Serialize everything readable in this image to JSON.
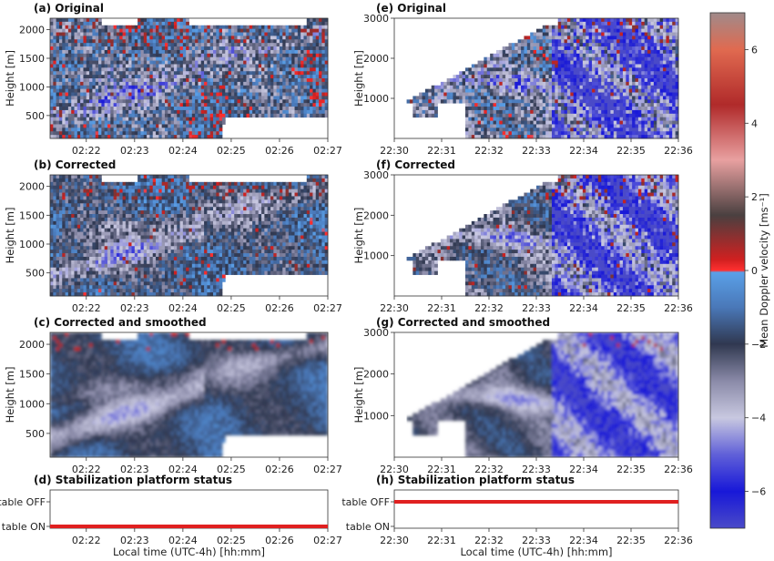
{
  "chart_data": [
    {
      "id": "a",
      "type": "heatmap",
      "title": "(a) Original",
      "ylabel": "Height [m]",
      "xlabel": "",
      "xticks": [
        "02:22",
        "02:23",
        "02:24",
        "02:25",
        "02:26",
        "02:27"
      ],
      "yticks": [
        "500",
        "1000",
        "1500",
        "2000"
      ],
      "xlim": [
        "02:21:15",
        "02:27:00"
      ],
      "ylim": [
        100,
        2200
      ]
    },
    {
      "id": "b",
      "type": "heatmap",
      "title": "(b) Corrected",
      "ylabel": "Height [m]",
      "xlabel": "",
      "xticks": [
        "02:22",
        "02:23",
        "02:24",
        "02:25",
        "02:26",
        "02:27"
      ],
      "yticks": [
        "500",
        "1000",
        "1500",
        "2000"
      ],
      "xlim": [
        "02:21:15",
        "02:27:00"
      ],
      "ylim": [
        100,
        2200
      ]
    },
    {
      "id": "c",
      "type": "heatmap",
      "title": "(c) Corrected and smoothed",
      "ylabel": "Height [m]",
      "xlabel": "",
      "xticks": [
        "02:22",
        "02:23",
        "02:24",
        "02:25",
        "02:26",
        "02:27"
      ],
      "yticks": [
        "500",
        "1000",
        "1500",
        "2000"
      ],
      "xlim": [
        "02:21:15",
        "02:27:00"
      ],
      "ylim": [
        100,
        2200
      ]
    },
    {
      "id": "d",
      "type": "line",
      "title": "(d) Stabilization platform status",
      "xlabel": "Local time (UTC-4h) [hh:mm]",
      "ylabel": "",
      "xticks": [
        "02:22",
        "02:23",
        "02:24",
        "02:25",
        "02:26",
        "02:27"
      ],
      "yticks": [
        "table OFF",
        "table ON"
      ],
      "series": [
        {
          "x": [
            "02:21:15",
            "02:27:00"
          ],
          "y": [
            "table ON",
            "table ON"
          ],
          "color": "#e02020"
        }
      ]
    },
    {
      "id": "e",
      "type": "heatmap",
      "title": "(e) Original",
      "ylabel": "Height [m]",
      "xlabel": "",
      "xticks": [
        "22:30",
        "22:31",
        "22:32",
        "22:33",
        "22:34",
        "22:35",
        "22:36"
      ],
      "yticks": [
        "1000",
        "2000",
        "3000"
      ],
      "xlim": [
        "22:30",
        "22:36"
      ],
      "ylim": [
        0,
        3000
      ]
    },
    {
      "id": "f",
      "type": "heatmap",
      "title": "(f) Corrected",
      "ylabel": "Height [m]",
      "xlabel": "",
      "xticks": [
        "22:30",
        "22:31",
        "22:32",
        "22:33",
        "22:34",
        "22:35",
        "22:36"
      ],
      "yticks": [
        "1000",
        "2000",
        "3000"
      ],
      "xlim": [
        "22:30",
        "22:36"
      ],
      "ylim": [
        0,
        3000
      ]
    },
    {
      "id": "g",
      "type": "heatmap",
      "title": "(g) Corrected and smoothed",
      "ylabel": "Height [m]",
      "xlabel": "",
      "xticks": [
        "22:30",
        "22:31",
        "22:32",
        "22:33",
        "22:34",
        "22:35",
        "22:36"
      ],
      "yticks": [
        "1000",
        "2000",
        "3000"
      ],
      "xlim": [
        "22:30",
        "22:36"
      ],
      "ylim": [
        0,
        3000
      ]
    },
    {
      "id": "h",
      "type": "line",
      "title": "(h) Stabilization platform status",
      "xlabel": "Local time (UTC-4h) [hh:mm]",
      "ylabel": "",
      "xticks": [
        "22:30",
        "22:31",
        "22:32",
        "22:33",
        "22:34",
        "22:35",
        "22:36"
      ],
      "yticks": [
        "table OFF",
        "table ON"
      ],
      "series": [
        {
          "x": [
            "22:30",
            "22:36"
          ],
          "y": [
            "table OFF",
            "table OFF"
          ],
          "color": "#e02020"
        }
      ]
    }
  ],
  "colorbar": {
    "label": "Mean Doppler velocity [ms⁻¹]",
    "range": [
      -7,
      7
    ],
    "ticks": [
      "6",
      "4",
      "2",
      "0",
      "−2",
      "−4",
      "−6"
    ],
    "stops": [
      {
        "v": 7,
        "color": "#a08a8a"
      },
      {
        "v": 6,
        "color": "#e06a50"
      },
      {
        "v": 4.5,
        "color": "#b02a2a"
      },
      {
        "v": 3,
        "color": "#e8a0a0"
      },
      {
        "v": 1.5,
        "color": "#4a4040"
      },
      {
        "v": 0.3,
        "color": "#d02020"
      },
      {
        "v": 0,
        "color": "#ff3030"
      },
      {
        "v": -0.05,
        "color": "#5aa0e8"
      },
      {
        "v": -1,
        "color": "#4a78b8"
      },
      {
        "v": -2,
        "color": "#303850"
      },
      {
        "v": -3,
        "color": "#8a8aa8"
      },
      {
        "v": -4,
        "color": "#c8c8e0"
      },
      {
        "v": -5,
        "color": "#6060d8"
      },
      {
        "v": -6,
        "color": "#1818d8"
      },
      {
        "v": -7,
        "color": "#4a4ac8"
      }
    ]
  }
}
